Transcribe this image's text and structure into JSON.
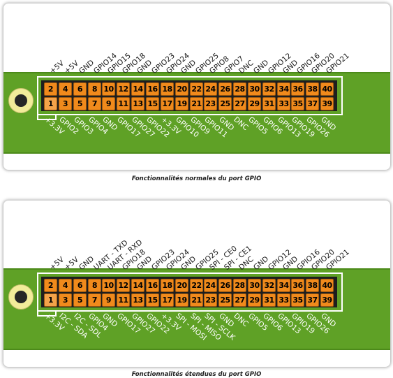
{
  "colors": {
    "board": "#5fa126",
    "pin": "#f08a1c",
    "header": "#1e1e1e"
  },
  "diagram1": {
    "top_pin_numbers": [
      "2",
      "4",
      "6",
      "8",
      "10",
      "12",
      "14",
      "16",
      "18",
      "20",
      "22",
      "24",
      "26",
      "28",
      "30",
      "32",
      "34",
      "36",
      "38",
      "40"
    ],
    "bottom_pin_numbers": [
      "1",
      "3",
      "5",
      "7",
      "9",
      "11",
      "13",
      "15",
      "17",
      "19",
      "21",
      "23",
      "25",
      "27",
      "29",
      "31",
      "33",
      "35",
      "37",
      "39"
    ],
    "top_labels": [
      "+5V",
      "+5V",
      "GND",
      "GPIO14",
      "GPIO15",
      "GPIO18",
      "GND",
      "GPIO23",
      "GPIO24",
      "GND",
      "GPIO25",
      "GPIO8",
      "GPIO7",
      "DNC",
      "GND",
      "GPIO12",
      "GND",
      "GPIO16",
      "GPIO20",
      "GPIO21"
    ],
    "bottom_labels": [
      "+3.3V",
      "GPIO2",
      "GPIO3",
      "GPIO4",
      "GND",
      "GPIO17",
      "GPIO27",
      "GPIO22",
      "+3.3V",
      "GPIO10",
      "GPIO9",
      "GPIO11",
      "GND",
      "DNC",
      "GPIO5",
      "GPIO6",
      "GPIO13",
      "GPIO19",
      "GPIO26",
      "GND"
    ],
    "caption": "Fonctionnalités normales du port GPIO"
  },
  "diagram2": {
    "top_pin_numbers": [
      "2",
      "4",
      "6",
      "8",
      "10",
      "12",
      "14",
      "16",
      "18",
      "20",
      "22",
      "24",
      "26",
      "28",
      "30",
      "32",
      "34",
      "36",
      "38",
      "40"
    ],
    "bottom_pin_numbers": [
      "1",
      "3",
      "5",
      "7",
      "9",
      "11",
      "13",
      "15",
      "17",
      "19",
      "21",
      "23",
      "25",
      "27",
      "29",
      "31",
      "33",
      "35",
      "37",
      "39"
    ],
    "top_labels": [
      "+5V",
      "+5V",
      "GND",
      "UART - TXD",
      "UART - RXD",
      "GPIO18",
      "GND",
      "GPIO23",
      "GPIO24",
      "GND",
      "GPIO25",
      "SPI - CE0",
      "SPI - CE1",
      "DNC",
      "GND",
      "GPIO12",
      "GND",
      "GPIO16",
      "GPIO20",
      "GPIO21"
    ],
    "bottom_labels": [
      "+3.3V",
      "I2C - SDA",
      "I2C - SDL",
      "GPIO4",
      "GND",
      "GPIO17",
      "GPIO27",
      "GPIO22",
      "+3.3V",
      "SPI - MOSI",
      "SPI - MISO",
      "SPI - SCLK",
      "GND",
      "DNC",
      "GPIO5",
      "GPIO6",
      "GPIO13",
      "GPIO19",
      "GPIO26",
      "GND"
    ],
    "caption": "Fonctionnalités étendues du port GPIO"
  }
}
